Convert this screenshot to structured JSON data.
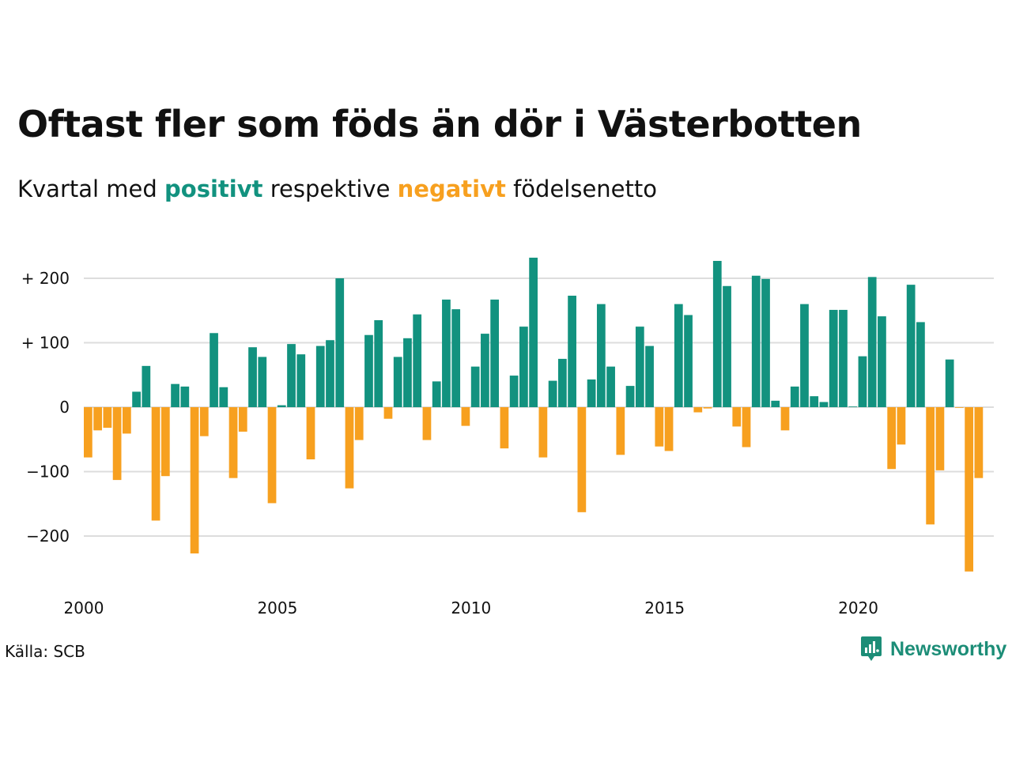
{
  "title": "Oftast fler som föds än dör i Västerbotten",
  "subtitle": {
    "prefix": "Kvartal med",
    "positive_word": "positivt",
    "middle": "respektive",
    "negative_word": "negativt",
    "suffix": "födelsenetto"
  },
  "source": "Källa: SCB",
  "brand": {
    "name": "Newsworthy",
    "icon": "newsworthy-logo-icon"
  },
  "colors": {
    "positive": "#12927f",
    "negative": "#f7a01f",
    "grid": "#dddddd"
  },
  "chart_data": {
    "type": "bar",
    "title": "Oftast fler som föds än dör i Västerbotten",
    "subtitle": "Kvartal med positivt respektive negativt födelsenetto",
    "xlabel": "",
    "ylabel": "",
    "x_start": "2000Q1",
    "x_end": "2023Q2",
    "ylim": [
      -260,
      240
    ],
    "y_ticks": [
      200,
      100,
      0,
      -100,
      -200
    ],
    "y_tick_labels": [
      "+ 200",
      "+ 100",
      "0",
      "−100",
      "−200"
    ],
    "x_ticks": [
      2000,
      2005,
      2010,
      2015,
      2020
    ],
    "x_tick_labels": [
      "2000",
      "2005",
      "2010",
      "2015",
      "2020"
    ],
    "grid": true,
    "categories": [
      "2000Q1",
      "2000Q2",
      "2000Q3",
      "2000Q4",
      "2001Q1",
      "2001Q2",
      "2001Q3",
      "2001Q4",
      "2002Q1",
      "2002Q2",
      "2002Q3",
      "2002Q4",
      "2003Q1",
      "2003Q2",
      "2003Q3",
      "2003Q4",
      "2004Q1",
      "2004Q2",
      "2004Q3",
      "2004Q4",
      "2005Q1",
      "2005Q2",
      "2005Q3",
      "2005Q4",
      "2006Q1",
      "2006Q2",
      "2006Q3",
      "2006Q4",
      "2007Q1",
      "2007Q2",
      "2007Q3",
      "2007Q4",
      "2008Q1",
      "2008Q2",
      "2008Q3",
      "2008Q4",
      "2009Q1",
      "2009Q2",
      "2009Q3",
      "2009Q4",
      "2010Q1",
      "2010Q2",
      "2010Q3",
      "2010Q4",
      "2011Q1",
      "2011Q2",
      "2011Q3",
      "2011Q4",
      "2012Q1",
      "2012Q2",
      "2012Q3",
      "2012Q4",
      "2013Q1",
      "2013Q2",
      "2013Q3",
      "2013Q4",
      "2014Q1",
      "2014Q2",
      "2014Q3",
      "2014Q4",
      "2015Q1",
      "2015Q2",
      "2015Q3",
      "2015Q4",
      "2016Q1",
      "2016Q2",
      "2016Q3",
      "2016Q4",
      "2017Q1",
      "2017Q2",
      "2017Q3",
      "2017Q4",
      "2018Q1",
      "2018Q2",
      "2018Q3",
      "2018Q4",
      "2019Q1",
      "2019Q2",
      "2019Q3",
      "2019Q4",
      "2020Q1",
      "2020Q2",
      "2020Q3",
      "2020Q4",
      "2021Q1",
      "2021Q2",
      "2021Q3",
      "2021Q4",
      "2022Q1",
      "2022Q2",
      "2022Q3",
      "2022Q4",
      "2023Q1",
      "2023Q2"
    ],
    "values": [
      -78,
      -36,
      -32,
      -113,
      -41,
      24,
      64,
      -176,
      -107,
      36,
      32,
      -227,
      -45,
      115,
      31,
      -110,
      -38,
      93,
      78,
      -149,
      3,
      98,
      82,
      -81,
      95,
      104,
      200,
      -126,
      -51,
      112,
      135,
      -18,
      78,
      107,
      144,
      -51,
      40,
      167,
      152,
      -29,
      63,
      114,
      167,
      -64,
      49,
      125,
      232,
      -78,
      41,
      75,
      173,
      -163,
      43,
      160,
      63,
      -74,
      33,
      125,
      95,
      -61,
      -68,
      160,
      143,
      -8,
      -2,
      227,
      188,
      -30,
      -62,
      204,
      199,
      10,
      -36,
      32,
      160,
      17,
      8,
      151,
      151,
      1,
      79,
      202,
      141,
      -96,
      -58,
      190,
      132,
      -182,
      -98,
      74,
      -1,
      -255,
      -110,
      0
    ]
  }
}
